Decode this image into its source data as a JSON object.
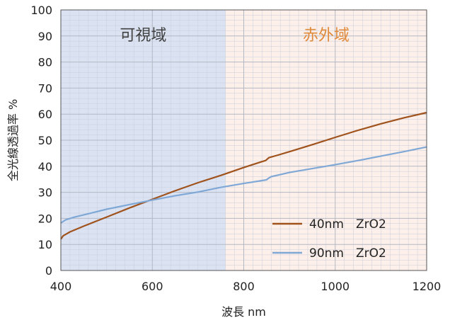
{
  "chart_data": {
    "type": "line",
    "xlabel": "波長 nm",
    "ylabel": "全光線透過率 %",
    "xlim": [
      400,
      1200
    ],
    "ylim": [
      0,
      100
    ],
    "xticks": [
      "400",
      "600",
      "800",
      "1000",
      "1200"
    ],
    "yticks": [
      "0",
      "10",
      "20",
      "30",
      "40",
      "50",
      "60",
      "70",
      "80",
      "90",
      "100"
    ],
    "grid": true,
    "legend_position": "bottom-right",
    "regions": [
      {
        "label": "可視域",
        "x_range": [
          400,
          760
        ],
        "color": "#dbe3f3",
        "label_color": "#404040"
      },
      {
        "label": "赤外域",
        "x_range": [
          760,
          1200
        ],
        "color": "#fdf0ea",
        "label_color": "#e08a3c"
      }
    ],
    "series": [
      {
        "name": "40nm　ZrO2",
        "color": "#a0521c",
        "x": [
          400,
          405,
          420,
          450,
          500,
          550,
          600,
          650,
          700,
          750,
          800,
          840,
          848,
          855,
          875,
          900,
          950,
          1000,
          1050,
          1100,
          1150,
          1200
        ],
        "y": [
          12,
          13.3,
          14.8,
          17,
          20.5,
          24,
          27.3,
          30.6,
          33.7,
          36.5,
          39.5,
          41.8,
          42.2,
          43.3,
          44.3,
          45.6,
          48.3,
          51.1,
          53.8,
          56.3,
          58.6,
          60.6
        ]
      },
      {
        "name": "90nm　ZrO2",
        "color": "#7fa8d6",
        "x": [
          400,
          410,
          430,
          470,
          500,
          550,
          600,
          650,
          700,
          750,
          800,
          840,
          850,
          855,
          860,
          880,
          900,
          950,
          1000,
          1050,
          1100,
          1150,
          1200
        ],
        "y": [
          18.2,
          19.4,
          20.5,
          22.2,
          23.5,
          25.3,
          27,
          28.7,
          30.1,
          31.9,
          33.4,
          34.5,
          34.8,
          35.5,
          36,
          36.8,
          37.6,
          39.1,
          40.6,
          42.2,
          43.9,
          45.6,
          47.4
        ]
      }
    ]
  }
}
